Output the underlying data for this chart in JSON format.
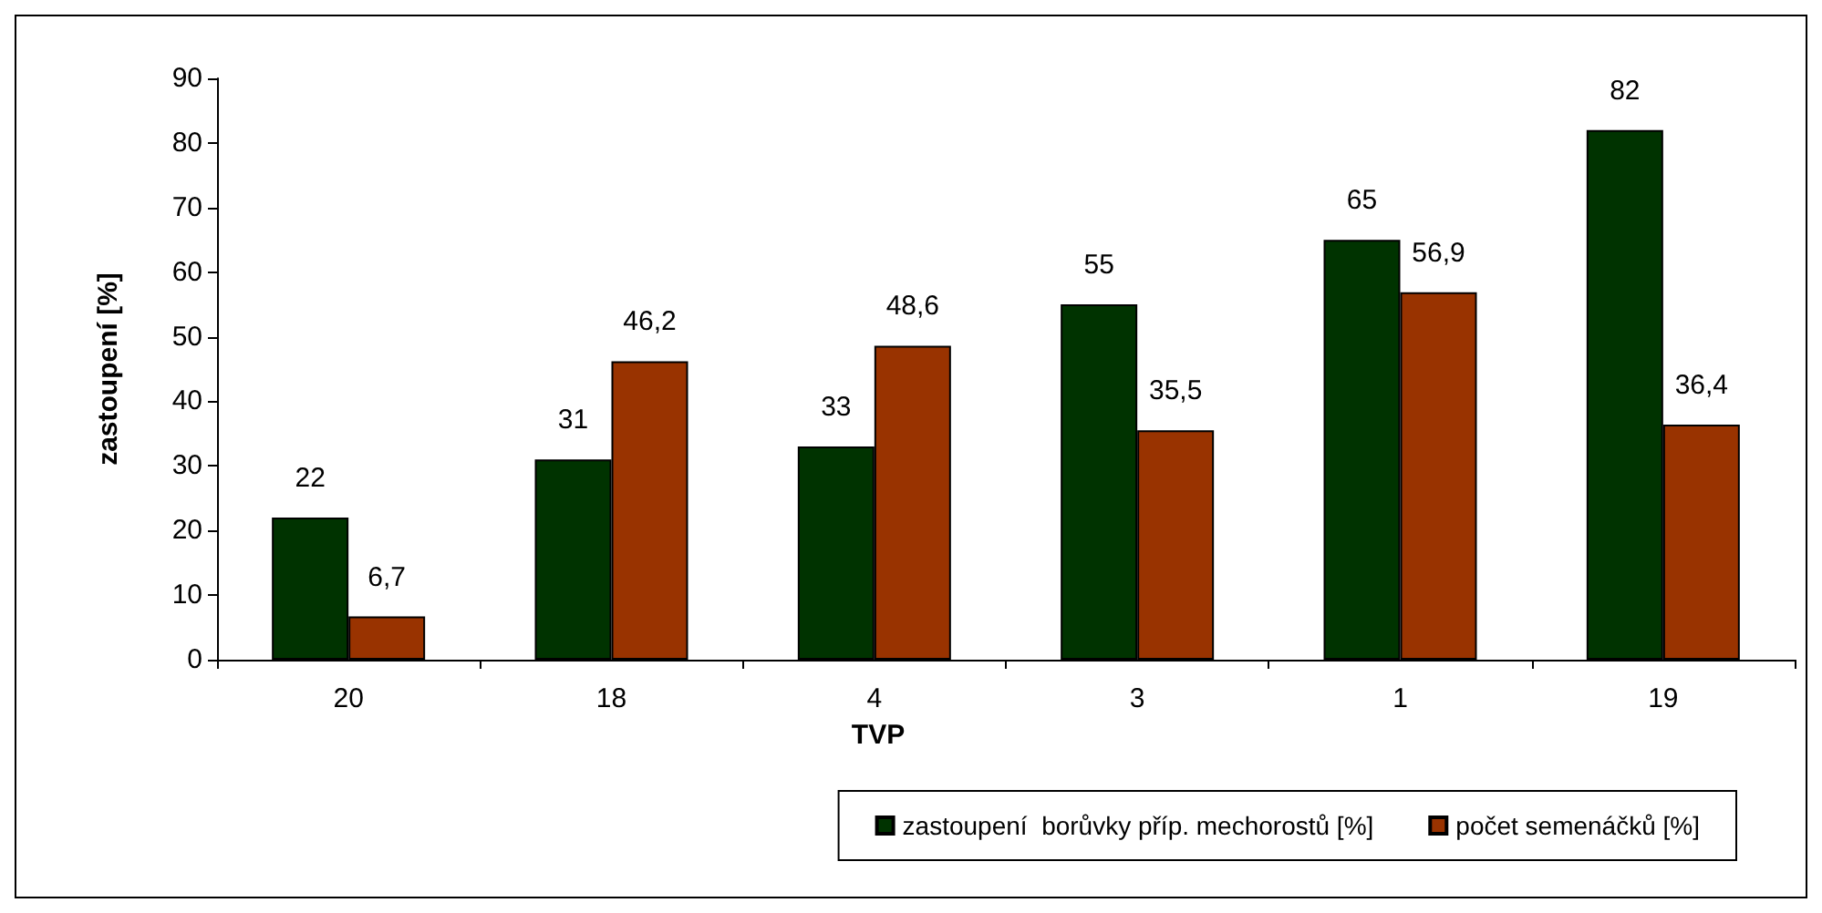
{
  "chart_data": {
    "type": "bar",
    "xlabel": "TVP",
    "ylabel": "zastoupení [%]",
    "categories": [
      "20",
      "18",
      "4",
      "3",
      "1",
      "19"
    ],
    "series": [
      {
        "name": "zastoupení  borůvky příp. mechorostů [%]",
        "color": "#003300",
        "values": [
          22,
          31,
          33,
          55,
          65,
          82
        ],
        "value_labels": [
          "22",
          "31",
          "33",
          "55",
          "65",
          "82"
        ]
      },
      {
        "name": "počet semenáčků [%]",
        "color": "#993300",
        "values": [
          6.7,
          46.2,
          48.6,
          35.5,
          56.9,
          36.4
        ],
        "value_labels": [
          "6,7",
          "46,2",
          "48,6",
          "35,5",
          "56,9",
          "36,4"
        ]
      }
    ],
    "ylim": [
      0,
      90
    ],
    "yticks": [
      0,
      10,
      20,
      30,
      40,
      50,
      60,
      70,
      80,
      90
    ],
    "grid": false,
    "legend": "bottom right"
  }
}
